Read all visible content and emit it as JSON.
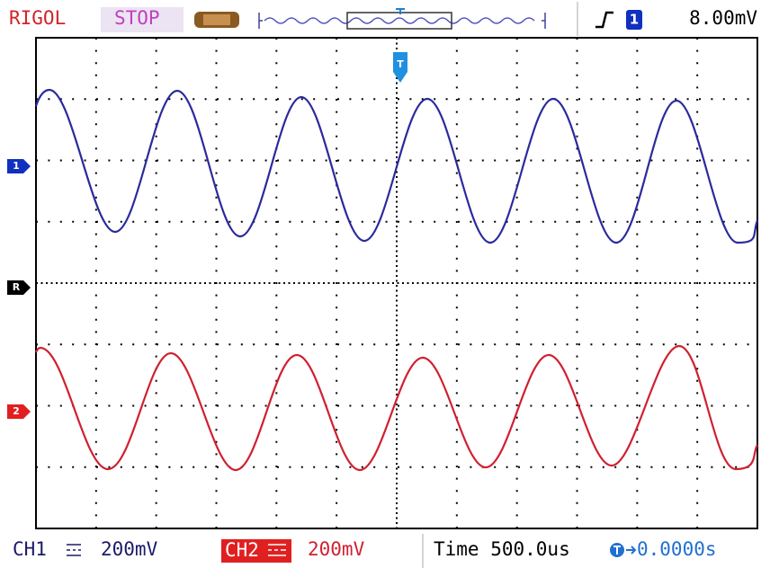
{
  "header": {
    "brand": "RIGOL",
    "status": "STOP",
    "trigger_channel": "1",
    "trigger_level": "8.00mV"
  },
  "markers": {
    "trigger": "T",
    "ch1": "1",
    "ref": "R",
    "ch2": "2"
  },
  "footer": {
    "ch1_label": "CH1",
    "ch1_scale": "200mV",
    "ch2_label": "CH2",
    "ch2_scale": "200mV",
    "timebase": "Time 500.0us",
    "offset": "0.0000s"
  }
}
